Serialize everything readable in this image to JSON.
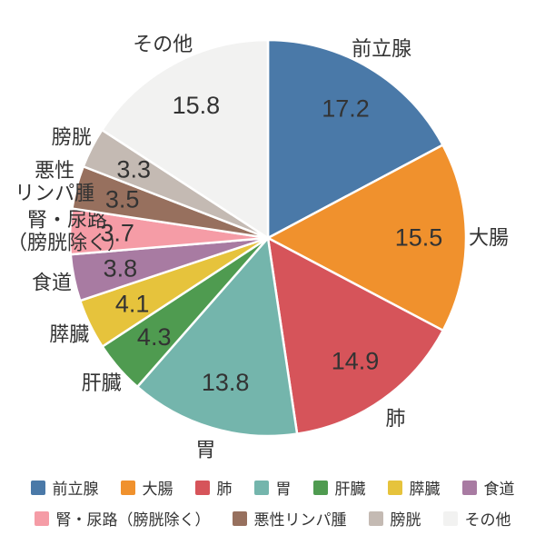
{
  "chart_data": {
    "type": "pie",
    "title": "",
    "unit": "%",
    "start_angle_deg": 0,
    "direction": "clockwise",
    "legend_position": "bottom",
    "legend_rows": [
      7,
      4
    ],
    "slices": [
      {
        "label": "前立腺",
        "value": 17.2,
        "color": "#4a79a8"
      },
      {
        "label": "大腸",
        "value": 15.5,
        "color": "#f0912d"
      },
      {
        "label": "肺",
        "value": 14.9,
        "color": "#d6545a"
      },
      {
        "label": "胃",
        "value": 13.8,
        "color": "#74b5ac"
      },
      {
        "label": "肝臓",
        "value": 4.3,
        "color": "#4f9b50"
      },
      {
        "label": "膵臓",
        "value": 4.1,
        "color": "#e6c33c"
      },
      {
        "label": "食道",
        "value": 3.8,
        "color": "#a87ba2"
      },
      {
        "label": "腎・尿路（膀胱除く）",
        "value": 3.7,
        "color": "#f59ca6",
        "label_lines": [
          "腎・尿路",
          "（膀胱除く）"
        ]
      },
      {
        "label": "悪性リンパ腫",
        "value": 3.5,
        "color": "#97705e",
        "label_lines": [
          "悪性",
          "リンパ腫"
        ]
      },
      {
        "label": "膀胱",
        "value": 3.3,
        "color": "#c4bab3"
      },
      {
        "label": "その他",
        "value": 15.8,
        "color": "#f2f2f1"
      }
    ]
  },
  "colors": {
    "text": "#333333",
    "background": "#ffffff",
    "slice_border": "#ffffff"
  }
}
